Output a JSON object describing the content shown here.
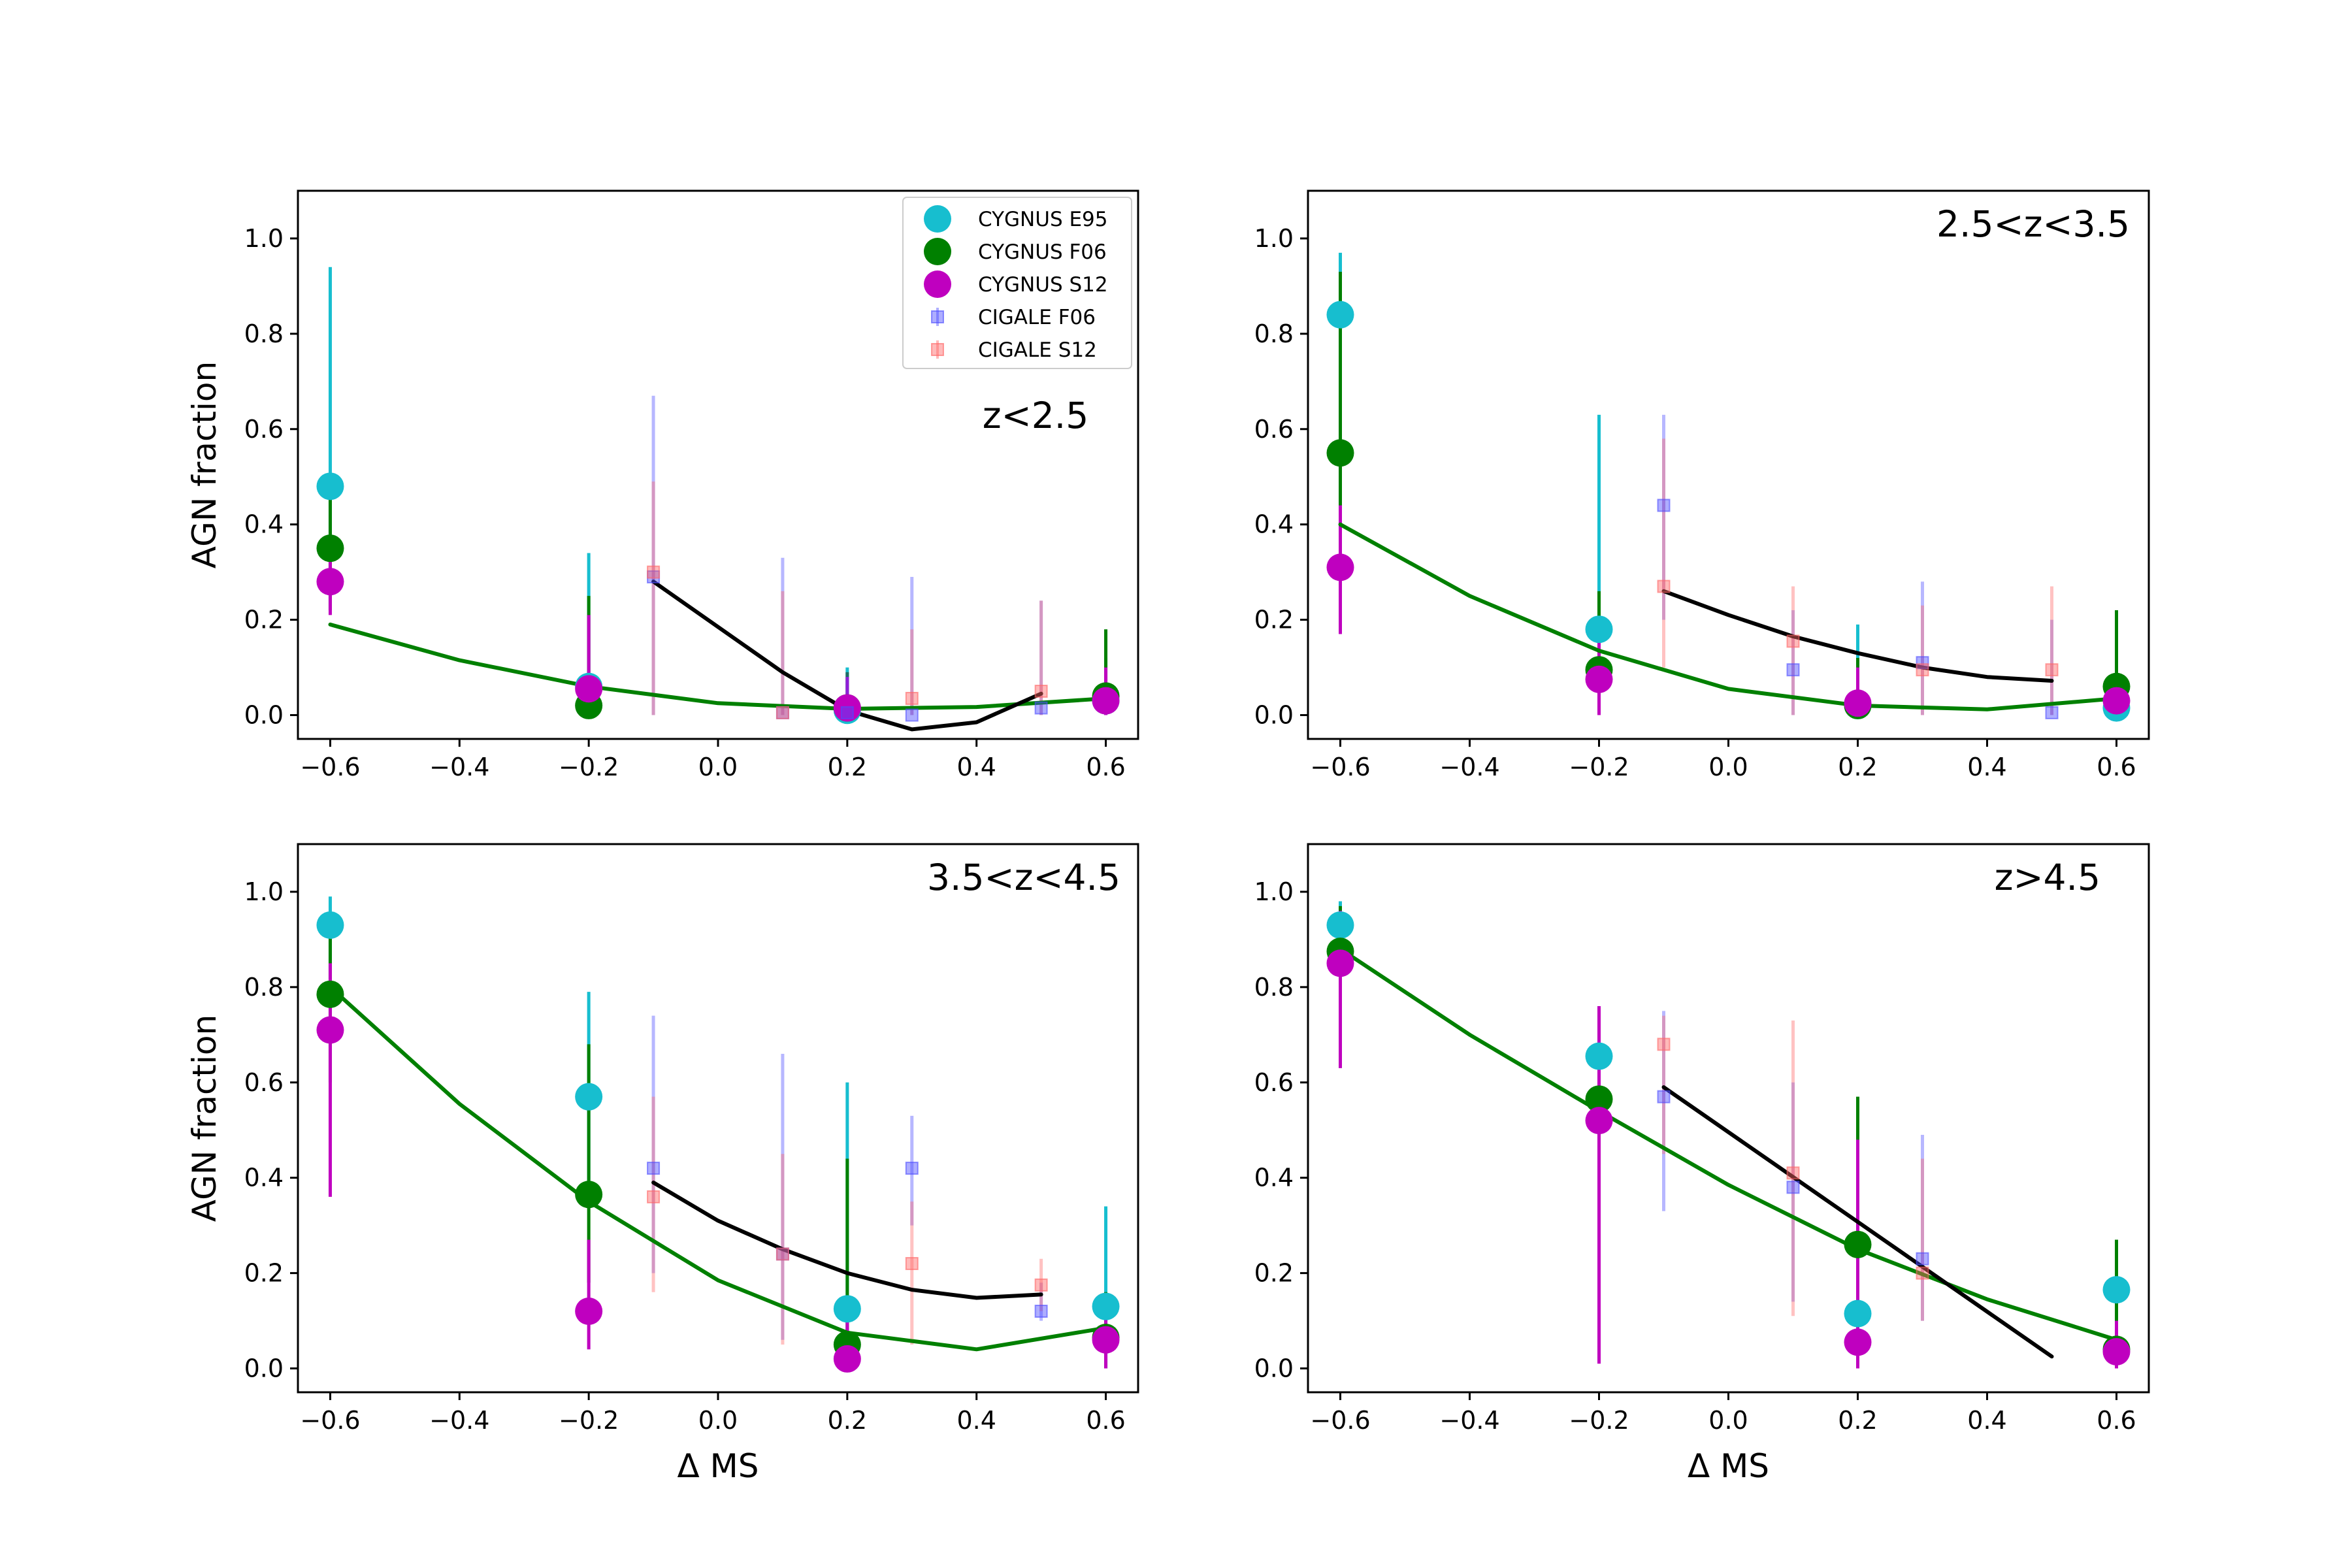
{
  "colors": {
    "cygnus_e95": "#17becf",
    "cygnus_f06": "#008000",
    "cygnus_s12": "#bf00bf",
    "cigale_f06": "#4c4cff",
    "cigale_s12": "#ff6666",
    "fit_green": "#008000",
    "fit_black": "#000000"
  },
  "legend": {
    "entries": [
      {
        "label": "CYGNUS E95",
        "series": "cygnus_e95",
        "marker": "circle"
      },
      {
        "label": "CYGNUS F06",
        "series": "cygnus_f06",
        "marker": "circle"
      },
      {
        "label": "CYGNUS S12",
        "series": "cygnus_s12",
        "marker": "circle"
      },
      {
        "label": "CIGALE F06",
        "series": "cigale_f06",
        "marker": "square"
      },
      {
        "label": "CIGALE S12",
        "series": "cigale_s12",
        "marker": "square"
      }
    ]
  },
  "chart_data": [
    {
      "type": "scatter",
      "title": "z<2.5",
      "xlabel": "",
      "ylabel": "AGN fraction",
      "xlim": [
        -0.65,
        0.65
      ],
      "ylim": [
        -0.05,
        1.1
      ],
      "xticks": [
        "−0.6",
        "−0.4",
        "−0.2",
        "0.0",
        "0.2",
        "0.4",
        "0.6"
      ],
      "yticks": [
        "0.0",
        "0.2",
        "0.4",
        "0.6",
        "0.8",
        "1.0"
      ],
      "series": [
        {
          "name": "CYGNUS E95",
          "key": "cygnus_e95",
          "marker": "circle",
          "x": [
            -0.6,
            -0.2,
            0.2,
            0.6
          ],
          "y": [
            0.48,
            0.06,
            0.01,
            0.03
          ],
          "lo": [
            0.22,
            0.0,
            0.0,
            0.0
          ],
          "hi": [
            0.94,
            0.34,
            0.1,
            0.12
          ]
        },
        {
          "name": "CYGNUS F06",
          "key": "cygnus_f06",
          "marker": "circle",
          "x": [
            -0.6,
            -0.2,
            0.2,
            0.6
          ],
          "y": [
            0.35,
            0.02,
            0.015,
            0.04
          ],
          "lo": [
            0.22,
            0.0,
            0.0,
            0.0
          ],
          "hi": [
            0.5,
            0.25,
            0.09,
            0.18
          ]
        },
        {
          "name": "CYGNUS S12",
          "key": "cygnus_s12",
          "marker": "circle",
          "x": [
            -0.6,
            -0.2,
            0.2,
            0.6
          ],
          "y": [
            0.28,
            0.055,
            0.015,
            0.03
          ],
          "lo": [
            0.21,
            0.0,
            0.0,
            0.0
          ],
          "hi": [
            0.34,
            0.21,
            0.08,
            0.1
          ]
        },
        {
          "name": "CIGALE F06",
          "key": "cigale_f06",
          "marker": "square",
          "x": [
            -0.1,
            0.1,
            0.2,
            0.3,
            0.5
          ],
          "y": [
            0.29,
            0.005,
            0.005,
            0.0,
            0.015
          ],
          "lo": [
            0.0,
            0.0,
            0.0,
            0.0,
            0.0
          ],
          "hi": [
            0.67,
            0.33,
            0.09,
            0.29,
            0.24
          ]
        },
        {
          "name": "CIGALE S12",
          "key": "cigale_s12",
          "marker": "square",
          "x": [
            -0.1,
            0.1,
            0.3,
            0.5
          ],
          "y": [
            0.3,
            0.005,
            0.035,
            0.05
          ],
          "lo": [
            0.0,
            0.0,
            0.0,
            0.0
          ],
          "hi": [
            0.49,
            0.26,
            0.18,
            0.24
          ]
        }
      ],
      "fits": [
        {
          "name": "green fit",
          "key": "fit_green",
          "x": [
            -0.6,
            -0.4,
            -0.2,
            0.0,
            0.2,
            0.4,
            0.6
          ],
          "y": [
            0.19,
            0.115,
            0.06,
            0.025,
            0.013,
            0.017,
            0.035
          ]
        },
        {
          "name": "black fit",
          "key": "fit_black",
          "x": [
            -0.1,
            0.0,
            0.1,
            0.2,
            0.3,
            0.4,
            0.5
          ],
          "y": [
            0.28,
            0.185,
            0.09,
            0.01,
            -0.03,
            -0.015,
            0.045
          ]
        }
      ]
    },
    {
      "type": "scatter",
      "title": "2.5<z<3.5",
      "xlabel": "",
      "ylabel": "",
      "xlim": [
        -0.65,
        0.65
      ],
      "ylim": [
        -0.05,
        1.1
      ],
      "xticks": [
        "−0.6",
        "−0.4",
        "−0.2",
        "0.0",
        "0.2",
        "0.4",
        "0.6"
      ],
      "yticks": [
        "0.0",
        "0.2",
        "0.4",
        "0.6",
        "0.8",
        "1.0"
      ],
      "series": [
        {
          "name": "CYGNUS E95",
          "key": "cygnus_e95",
          "marker": "circle",
          "x": [
            -0.6,
            -0.2,
            0.2,
            0.6
          ],
          "y": [
            0.84,
            0.18,
            0.02,
            0.015
          ],
          "lo": [
            0.6,
            0.0,
            0.0,
            0.0
          ],
          "hi": [
            0.97,
            0.63,
            0.19,
            0.22
          ]
        },
        {
          "name": "CYGNUS F06",
          "key": "cygnus_f06",
          "marker": "circle",
          "x": [
            -0.6,
            -0.2,
            0.2,
            0.6
          ],
          "y": [
            0.55,
            0.095,
            0.02,
            0.06
          ],
          "lo": [
            0.3,
            0.0,
            0.0,
            0.0
          ],
          "hi": [
            0.93,
            0.26,
            0.12,
            0.22
          ]
        },
        {
          "name": "CYGNUS S12",
          "key": "cygnus_s12",
          "marker": "circle",
          "x": [
            -0.6,
            -0.2,
            0.2,
            0.6
          ],
          "y": [
            0.31,
            0.075,
            0.025,
            0.03
          ],
          "lo": [
            0.17,
            0.0,
            0.0,
            0.0
          ],
          "hi": [
            0.44,
            0.2,
            0.1,
            0.08
          ]
        },
        {
          "name": "CIGALE F06",
          "key": "cigale_f06",
          "marker": "square",
          "x": [
            -0.1,
            0.1,
            0.3,
            0.5
          ],
          "y": [
            0.44,
            0.095,
            0.11,
            0.005
          ],
          "lo": [
            0.2,
            0.0,
            0.0,
            0.0
          ],
          "hi": [
            0.63,
            0.22,
            0.28,
            0.2
          ]
        },
        {
          "name": "CIGALE S12",
          "key": "cigale_s12",
          "marker": "square",
          "x": [
            -0.1,
            0.1,
            0.3,
            0.5
          ],
          "y": [
            0.27,
            0.155,
            0.095,
            0.095
          ],
          "lo": [
            0.1,
            0.0,
            0.0,
            0.0
          ],
          "hi": [
            0.58,
            0.27,
            0.23,
            0.27
          ]
        }
      ],
      "fits": [
        {
          "name": "green fit",
          "key": "fit_green",
          "x": [
            -0.6,
            -0.4,
            -0.2,
            0.0,
            0.2,
            0.4,
            0.6
          ],
          "y": [
            0.4,
            0.25,
            0.135,
            0.055,
            0.02,
            0.012,
            0.035
          ]
        },
        {
          "name": "black fit",
          "key": "fit_black",
          "x": [
            -0.1,
            0.0,
            0.1,
            0.2,
            0.3,
            0.4,
            0.5
          ],
          "y": [
            0.26,
            0.21,
            0.165,
            0.13,
            0.1,
            0.08,
            0.072
          ]
        }
      ]
    },
    {
      "type": "scatter",
      "title": "3.5<z<4.5",
      "xlabel": "Δ MS",
      "ylabel": "AGN fraction",
      "xlim": [
        -0.65,
        0.65
      ],
      "ylim": [
        -0.05,
        1.1
      ],
      "xticks": [
        "−0.6",
        "−0.4",
        "−0.2",
        "0.0",
        "0.2",
        "0.4",
        "0.6"
      ],
      "yticks": [
        "0.0",
        "0.2",
        "0.4",
        "0.6",
        "0.8",
        "1.0"
      ],
      "series": [
        {
          "name": "CYGNUS E95",
          "key": "cygnus_e95",
          "marker": "circle",
          "x": [
            -0.6,
            -0.2,
            0.2,
            0.6
          ],
          "y": [
            0.93,
            0.57,
            0.125,
            0.13
          ],
          "lo": [
            0.8,
            0.37,
            0.0,
            0.0
          ],
          "hi": [
            0.99,
            0.79,
            0.6,
            0.34
          ]
        },
        {
          "name": "CYGNUS F06",
          "key": "cygnus_f06",
          "marker": "circle",
          "x": [
            -0.6,
            -0.2,
            0.2,
            0.6
          ],
          "y": [
            0.785,
            0.365,
            0.05,
            0.065
          ],
          "lo": [
            0.6,
            0.18,
            0.0,
            0.0
          ],
          "hi": [
            0.93,
            0.68,
            0.44,
            0.16
          ]
        },
        {
          "name": "CYGNUS S12",
          "key": "cygnus_s12",
          "marker": "circle",
          "x": [
            -0.6,
            -0.2,
            0.2,
            0.6
          ],
          "y": [
            0.71,
            0.12,
            0.02,
            0.06
          ],
          "lo": [
            0.36,
            0.04,
            0.0,
            0.0
          ],
          "hi": [
            0.85,
            0.27,
            0.1,
            0.14
          ]
        },
        {
          "name": "CIGALE F06",
          "key": "cigale_f06",
          "marker": "square",
          "x": [
            -0.1,
            0.1,
            0.3,
            0.5
          ],
          "y": [
            0.42,
            0.24,
            0.42,
            0.12
          ],
          "lo": [
            0.2,
            0.06,
            0.3,
            0.1
          ],
          "hi": [
            0.74,
            0.66,
            0.53,
            0.18
          ]
        },
        {
          "name": "CIGALE S12",
          "key": "cigale_s12",
          "marker": "square",
          "x": [
            -0.1,
            0.1,
            0.3,
            0.5
          ],
          "y": [
            0.36,
            0.24,
            0.22,
            0.175
          ],
          "lo": [
            0.16,
            0.05,
            0.05,
            0.12
          ],
          "hi": [
            0.57,
            0.45,
            0.35,
            0.23
          ]
        }
      ],
      "fits": [
        {
          "name": "green fit",
          "key": "fit_green",
          "x": [
            -0.6,
            -0.4,
            -0.2,
            0.0,
            0.2,
            0.4,
            0.6
          ],
          "y": [
            0.8,
            0.555,
            0.35,
            0.185,
            0.075,
            0.04,
            0.085
          ]
        },
        {
          "name": "black fit",
          "key": "fit_black",
          "x": [
            -0.1,
            0.0,
            0.1,
            0.2,
            0.3,
            0.4,
            0.5
          ],
          "y": [
            0.39,
            0.31,
            0.25,
            0.2,
            0.165,
            0.148,
            0.155
          ]
        }
      ]
    },
    {
      "type": "scatter",
      "title": "z>4.5",
      "xlabel": "Δ MS",
      "ylabel": "",
      "xlim": [
        -0.65,
        0.65
      ],
      "ylim": [
        -0.05,
        1.1
      ],
      "xticks": [
        "−0.6",
        "−0.4",
        "−0.2",
        "0.0",
        "0.2",
        "0.4",
        "0.6"
      ],
      "yticks": [
        "0.0",
        "0.2",
        "0.4",
        "0.6",
        "0.8",
        "1.0"
      ],
      "series": [
        {
          "name": "CYGNUS E95",
          "key": "cygnus_e95",
          "marker": "circle",
          "x": [
            -0.6,
            -0.2,
            0.2,
            0.6
          ],
          "y": [
            0.93,
            0.655,
            0.115,
            0.165
          ],
          "lo": [
            0.8,
            0.47,
            0.0,
            0.0
          ],
          "hi": [
            0.98,
            0.76,
            0.2,
            0.26
          ]
        },
        {
          "name": "CYGNUS F06",
          "key": "cygnus_f06",
          "marker": "circle",
          "x": [
            -0.6,
            -0.2,
            0.2,
            0.6
          ],
          "y": [
            0.875,
            0.565,
            0.26,
            0.04
          ],
          "lo": [
            0.72,
            0.3,
            0.05,
            0.0
          ],
          "hi": [
            0.97,
            0.72,
            0.57,
            0.27
          ]
        },
        {
          "name": "CYGNUS S12",
          "key": "cygnus_s12",
          "marker": "circle",
          "x": [
            -0.6,
            -0.2,
            0.2,
            0.6
          ],
          "y": [
            0.85,
            0.52,
            0.055,
            0.035
          ],
          "lo": [
            0.63,
            0.01,
            0.0,
            0.0
          ],
          "hi": [
            0.96,
            0.76,
            0.48,
            0.1
          ]
        },
        {
          "name": "CIGALE F06",
          "key": "cigale_f06",
          "marker": "square",
          "x": [
            -0.1,
            0.1,
            0.3
          ],
          "y": [
            0.57,
            0.38,
            0.23
          ],
          "lo": [
            0.33,
            0.14,
            0.1
          ],
          "hi": [
            0.75,
            0.6,
            0.49
          ]
        },
        {
          "name": "CIGALE S12",
          "key": "cigale_s12",
          "marker": "square",
          "x": [
            -0.1,
            0.1,
            0.3
          ],
          "y": [
            0.68,
            0.41,
            0.2
          ],
          "lo": [
            0.45,
            0.11,
            0.1
          ],
          "hi": [
            0.74,
            0.73,
            0.44
          ]
        }
      ],
      "fits": [
        {
          "name": "green fit",
          "key": "fit_green",
          "x": [
            -0.6,
            -0.4,
            -0.2,
            0.0,
            0.2,
            0.4,
            0.6
          ],
          "y": [
            0.88,
            0.7,
            0.54,
            0.385,
            0.25,
            0.145,
            0.06
          ]
        },
        {
          "name": "black fit",
          "key": "fit_black",
          "x": [
            -0.1,
            0.5
          ],
          "y": [
            0.59,
            0.025
          ]
        }
      ]
    }
  ]
}
